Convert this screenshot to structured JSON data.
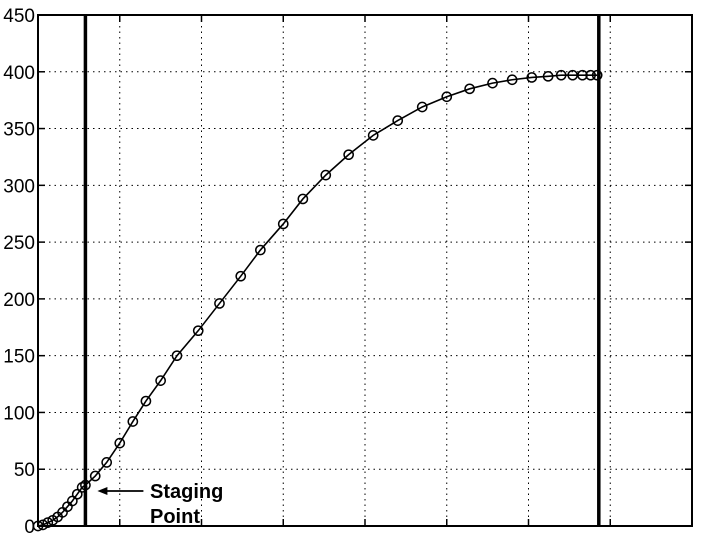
{
  "chart_data": {
    "type": "line",
    "title": "",
    "xlabel": "",
    "ylabel": "",
    "ylim": [
      0,
      450
    ],
    "xlim": [
      0,
      20
    ],
    "yticks": [
      0,
      50,
      100,
      150,
      200,
      250,
      300,
      350,
      400,
      450
    ],
    "ytick_labels": [
      "0",
      "50",
      "100",
      "150",
      "200",
      "250",
      "300",
      "350",
      "400",
      "450"
    ],
    "xticks": [
      0,
      2.5,
      5,
      7.5,
      10,
      12.5,
      15,
      17.5,
      20
    ],
    "grid": true,
    "vertical_lines": [
      1.45,
      17.15
    ],
    "annotation": {
      "lines": [
        "Staging",
        "Point"
      ],
      "x": 1.45,
      "y": 36
    },
    "series": [
      {
        "marker": "circle",
        "x": [
          0.0,
          0.15,
          0.3,
          0.45,
          0.6,
          0.75,
          0.9,
          1.05,
          1.2,
          1.35,
          1.45,
          1.75,
          2.1,
          2.5,
          2.9,
          3.3,
          3.75,
          4.25,
          4.9,
          5.55,
          6.2,
          6.8,
          7.5,
          8.1,
          8.8,
          9.5,
          10.25,
          11.0,
          11.75,
          12.5,
          13.2,
          13.9,
          14.5,
          15.1,
          15.6,
          16.0,
          16.35,
          16.65,
          16.9,
          17.1
        ],
        "y": [
          0,
          1,
          3,
          5,
          8,
          12,
          17,
          22,
          28,
          34,
          36,
          44,
          56,
          73,
          92,
          110,
          128,
          150,
          172,
          196,
          220,
          243,
          266,
          288,
          309,
          327,
          344,
          357,
          369,
          378,
          385,
          390,
          393,
          395,
          396,
          397,
          397,
          397,
          397,
          397
        ]
      }
    ]
  }
}
